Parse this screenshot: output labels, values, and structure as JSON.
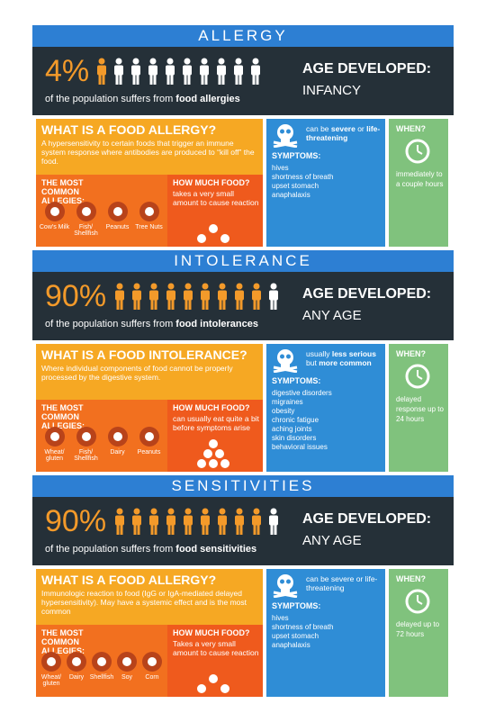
{
  "sections": [
    {
      "title": "ALLERGY",
      "percent": "4%",
      "population_text": "of the population suffers from",
      "population_bold": "food allergies",
      "age_label": "AGE DEVELOPED:",
      "age_value": "INFANCY",
      "question": "WHAT IS A FOOD ALLERGY?",
      "description": "A hypersensitivity to certain foods that trigger an immune system response where antibodies are produced to “kill off” the food.",
      "common_label": "THE MOST COMMON ALLEGIES:",
      "allergens": [
        "Cow's Milk",
        "Fish/ Shellfish",
        "Peanuts",
        "Tree Nuts"
      ],
      "amount_label": "HOW MUCH FOOD?",
      "amount_text": "takes a very small amount to cause reaction",
      "severity": [
        "can be ",
        "severe",
        " or ",
        "life-threatening"
      ],
      "symptoms_label": "SYMPTOMS:",
      "symptoms": [
        "hives",
        "shortness of breath",
        "upset stomach",
        "anaphalaxis"
      ],
      "when_label": "WHEN?",
      "when_text": "immediately to a couple hours"
    },
    {
      "title": "INTOLERANCE",
      "percent": "90%",
      "population_text": "of the population suffers from",
      "population_bold": "food intolerances",
      "age_label": "AGE DEVELOPED:",
      "age_value": "ANY AGE",
      "question": "WHAT IS A FOOD INTOLERANCE?",
      "description": "Where individual components of food cannot be properly processed by the digestive system.",
      "common_label": "THE MOST COMMON ALLEGIES:",
      "allergens": [
        "Wheat/ gluten",
        "Fish/ Shellfish",
        "Dairy",
        "Peanuts"
      ],
      "amount_label": "HOW MUCH FOOD?",
      "amount_text": "can usually eat quite a bit before symptoms arise",
      "severity": [
        "usually ",
        "less serious",
        " but ",
        "more common"
      ],
      "symptoms_label": "SYMPTOMS:",
      "symptoms": [
        "digestive disorders",
        "migraines",
        "obesity",
        "chronic fatigue",
        "aching joints",
        "skin disorders",
        "behavioral issues"
      ],
      "when_label": "WHEN?",
      "when_text": "delayed response up to 24 hours"
    },
    {
      "title": "SENSITIVITIES",
      "percent": "90%",
      "population_text": "of the population suffers from",
      "population_bold": "food sensitivities",
      "age_label": "AGE DEVELOPED:",
      "age_value": "ANY AGE",
      "question": "WHAT IS A FOOD ALLERGY?",
      "description": "Immunologic reaction to food (IgG or IgA-mediated delayed hypersensitivity). May have a systemic effect and is the most common",
      "common_label": "THE MOST COMMON ALLEGIES:",
      "allergens": [
        "Wheat/ gluten",
        "Dairy",
        "Shellfish",
        "Soy",
        "Corn"
      ],
      "amount_label": "HOW MUCH FOOD?",
      "amount_text": "Takes a very small amount to cause reaction",
      "severity": [
        "can be severe or life-threatening"
      ],
      "symptoms_label": "SYMPTOMS:",
      "symptoms": [
        "hives",
        "shortness of breath",
        "upset stomach",
        "anaphalaxis"
      ],
      "when_label": "WHEN?",
      "when_text": "delayed up to 72 hours"
    }
  ]
}
